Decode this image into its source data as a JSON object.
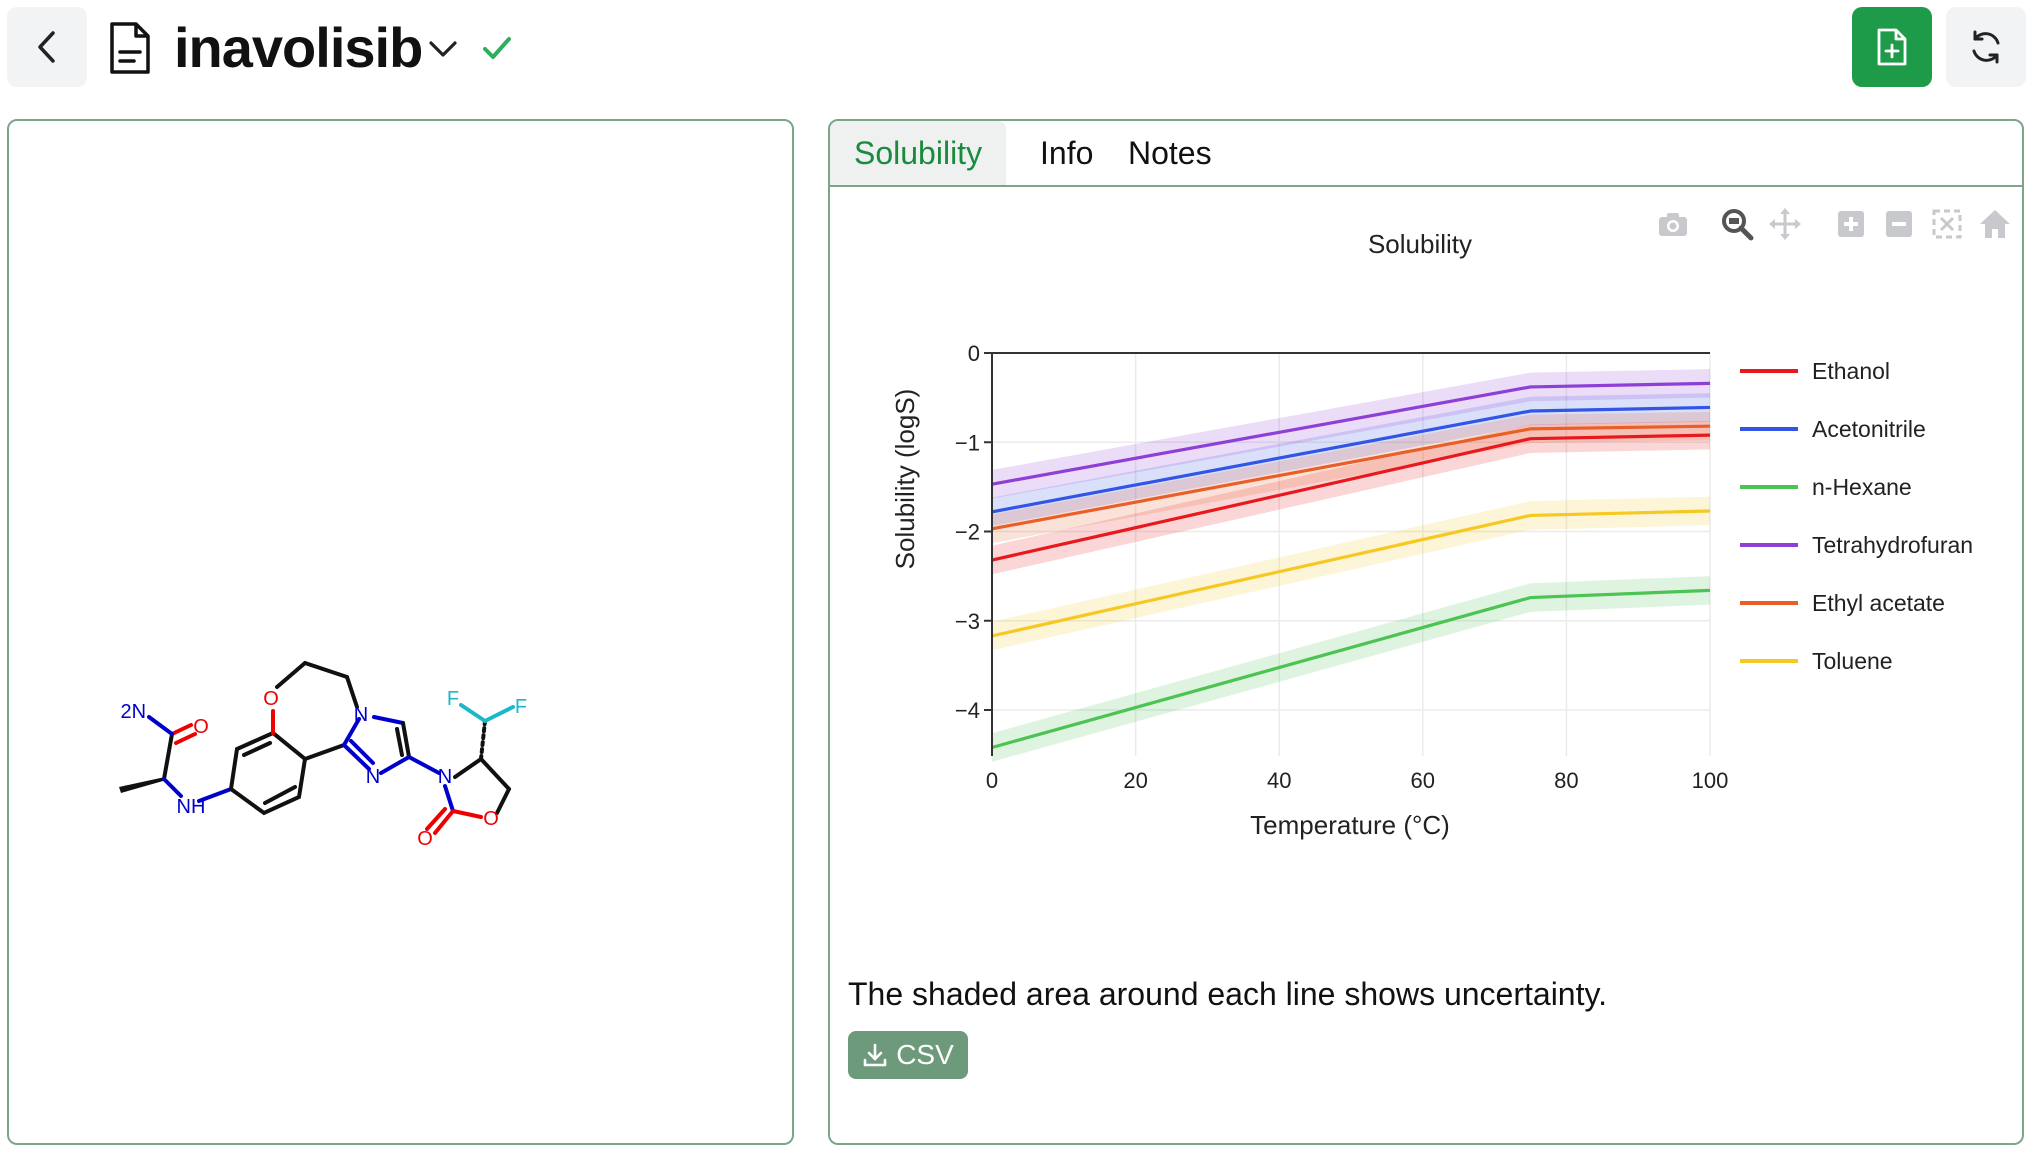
{
  "header": {
    "title": "inavolisib",
    "back_icon": "chevron-left-icon",
    "document_icon": "document-icon",
    "dropdown_icon": "chevron-down-icon",
    "status_icon": "check-icon",
    "new_icon": "file-plus-icon",
    "refresh_icon": "refresh-icon",
    "accent": "#1e9b48"
  },
  "molecule": {
    "atoms": [
      "H2N",
      "O",
      "NH",
      "O",
      "N",
      "N",
      "N",
      "F",
      "F",
      "O",
      "O"
    ]
  },
  "tabs": [
    {
      "label": "Solubility",
      "active": true
    },
    {
      "label": "Info",
      "active": false
    },
    {
      "label": "Notes",
      "active": false
    }
  ],
  "modebar_icons": [
    "camera-icon",
    "zoom-icon",
    "pan-icon",
    "zoom-in-icon",
    "zoom-out-icon",
    "autoscale-icon",
    "home-icon"
  ],
  "chart_data": {
    "type": "line",
    "title": "Solubility",
    "xlabel": "Temperature (°C)",
    "ylabel": "Solubility (logS)",
    "x": [
      0,
      75,
      100
    ],
    "xlim": [
      0,
      100
    ],
    "ylim": [
      -5,
      0
    ],
    "xticks": [
      0,
      20,
      40,
      60,
      80,
      100
    ],
    "yticks": [
      0,
      -1,
      -2,
      -3,
      -4
    ],
    "ytick_labels": [
      "0",
      "−1",
      "−2",
      "−3",
      "−4"
    ],
    "grid": true,
    "legend_position": "right",
    "band_halfwidth": 0.16,
    "series": [
      {
        "name": "Ethanol",
        "color": "#e8191c",
        "values": [
          -2.32,
          -0.96,
          -0.92
        ]
      },
      {
        "name": "Acetonitrile",
        "color": "#3355e6",
        "values": [
          -1.78,
          -0.65,
          -0.61
        ]
      },
      {
        "name": "n-Hexane",
        "color": "#4cc452",
        "values": [
          -4.42,
          -2.74,
          -2.66
        ]
      },
      {
        "name": "Tetrahydrofuran",
        "color": "#8e3fd6",
        "values": [
          -1.47,
          -0.38,
          -0.34
        ]
      },
      {
        "name": "Ethyl acetate",
        "color": "#e85f2a",
        "values": [
          -1.97,
          -0.85,
          -0.82
        ]
      },
      {
        "name": "Toluene",
        "color": "#f5c822",
        "values": [
          -3.17,
          -1.82,
          -1.77
        ]
      }
    ]
  },
  "caption": "The shaded area around each line shows uncertainty.",
  "csv_button": {
    "label": "CSV",
    "icon": "download-icon"
  }
}
